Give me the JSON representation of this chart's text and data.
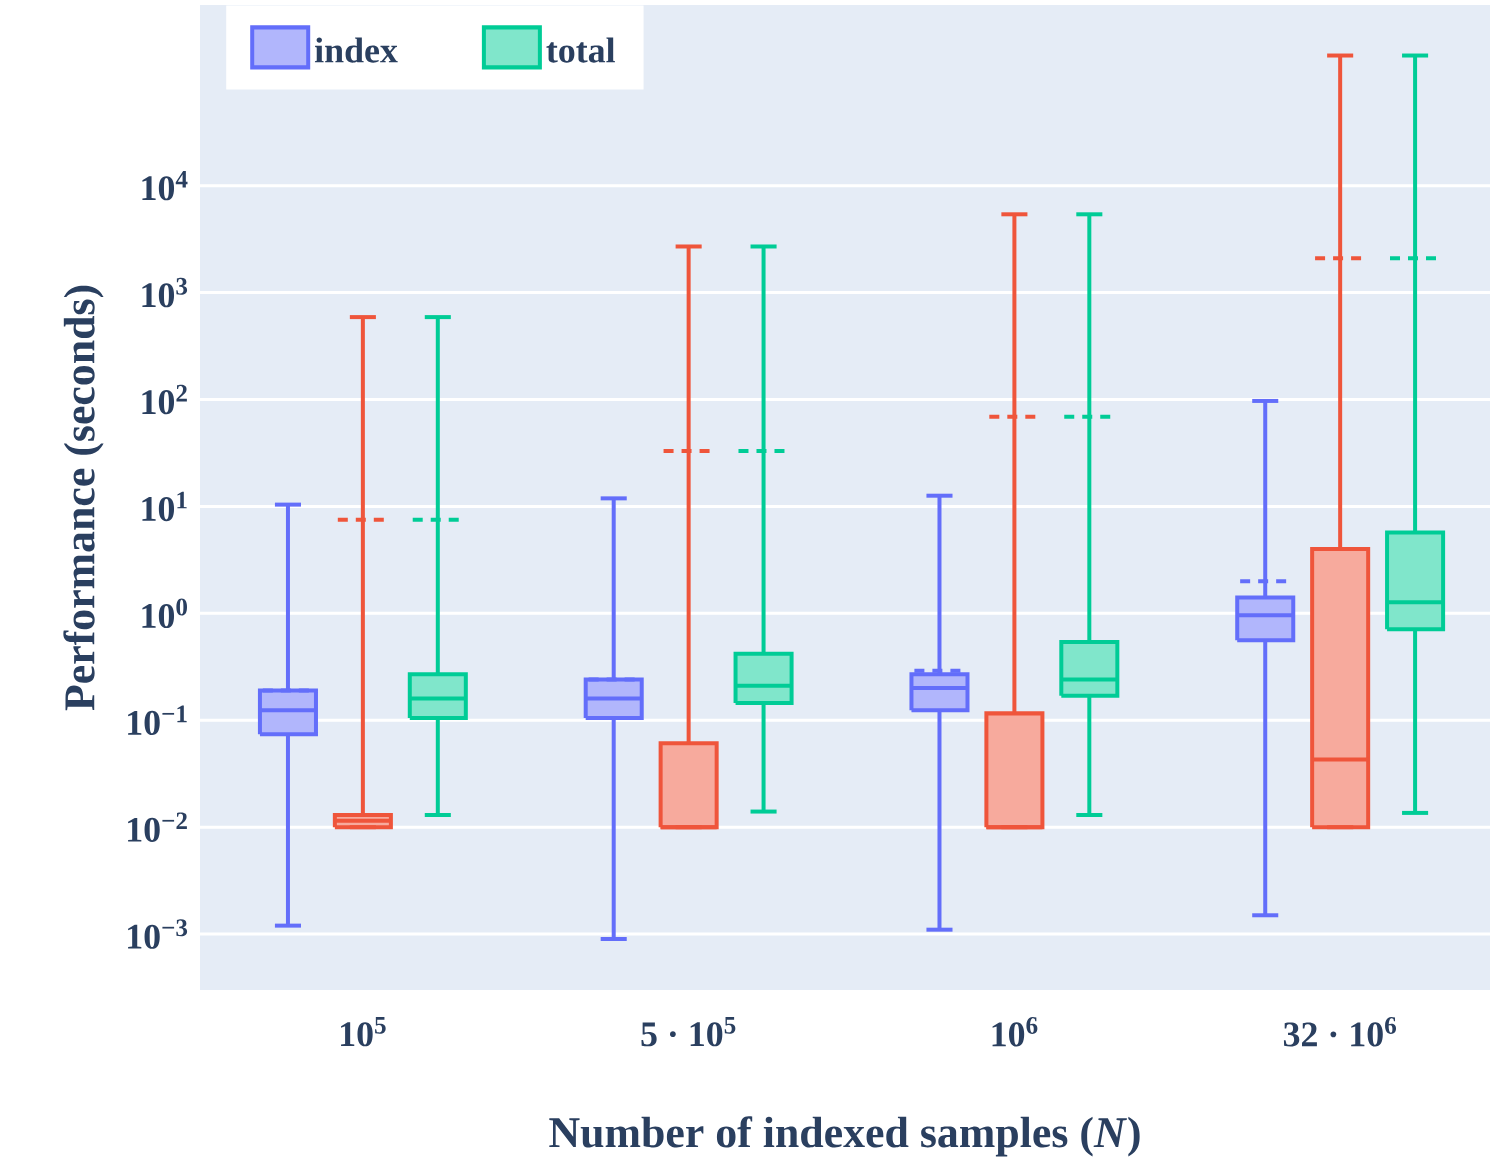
{
  "chart_data": {
    "type": "box",
    "xlabel": "Number of indexed samples (*N*)",
    "ylabel": "Performance (seconds)",
    "categories": [
      "10$^{5}$",
      "5 · 10$^{5}$",
      "10$^{6}$",
      "32 · 10$^{6}$"
    ],
    "log": true,
    "grid": "y",
    "legend": "top left",
    "ylim": [
      0.0003,
      490000
    ],
    "yticks": [
      {
        "value": 0.001,
        "label": "10$^{−3}$"
      },
      {
        "value": 0.01,
        "label": "10$^{−2}$"
      },
      {
        "value": 0.1,
        "label": "10$^{−1}$"
      },
      {
        "value": 1,
        "label": "10$^{0}$"
      },
      {
        "value": 10,
        "label": "10$^{1}$"
      },
      {
        "value": 100,
        "label": "10$^{2}$"
      },
      {
        "value": 1000,
        "label": "10$^{3}$"
      },
      {
        "value": 10000,
        "label": "10$^{4}$"
      }
    ],
    "series": [
      {
        "name": "index",
        "color": "#636efa",
        "boxes": [
          {
            "low": 0.0012,
            "q1": 0.074,
            "median": 0.124,
            "q3": 0.19,
            "high": 10.4,
            "mean": 0.19
          },
          {
            "low": 0.0009,
            "q1": 0.105,
            "median": 0.16,
            "q3": 0.24,
            "high": 11.9,
            "mean": 0.24
          },
          {
            "low": 0.0011,
            "q1": 0.124,
            "median": 0.2,
            "q3": 0.27,
            "high": 12.6,
            "mean": 0.29
          },
          {
            "low": 0.0015,
            "q1": 0.56,
            "median": 0.96,
            "q3": 1.41,
            "high": 97,
            "mean": 2.0
          }
        ]
      },
      {
        "color": "#ef553b",
        "boxes": [
          {
            "low": 0.01,
            "q1": 0.01,
            "median": 0.0115,
            "q3": 0.013,
            "high": 590,
            "mean": 7.5
          },
          {
            "low": 0.01,
            "q1": 0.01,
            "median": 0.01,
            "q3": 0.061,
            "high": 2700,
            "mean": 33
          },
          {
            "low": 0.01,
            "q1": 0.01,
            "median": 0.01,
            "q3": 0.116,
            "high": 5400,
            "mean": 69
          },
          {
            "low": 0.01,
            "q1": 0.01,
            "median": 0.043,
            "q3": 4.0,
            "high": 165000,
            "mean": 2100
          }
        ]
      },
      {
        "name": "total",
        "color": "#00cc96",
        "boxes": [
          {
            "low": 0.013,
            "q1": 0.105,
            "median": 0.16,
            "q3": 0.27,
            "high": 590,
            "mean": 7.5
          },
          {
            "low": 0.014,
            "q1": 0.145,
            "median": 0.21,
            "q3": 0.42,
            "high": 2700,
            "mean": 33
          },
          {
            "low": 0.013,
            "q1": 0.17,
            "median": 0.24,
            "q3": 0.54,
            "high": 5400,
            "mean": 69
          },
          {
            "low": 0.0136,
            "q1": 0.71,
            "median": 1.27,
            "q3": 5.7,
            "high": 165000,
            "mean": 2100
          }
        ]
      }
    ]
  }
}
